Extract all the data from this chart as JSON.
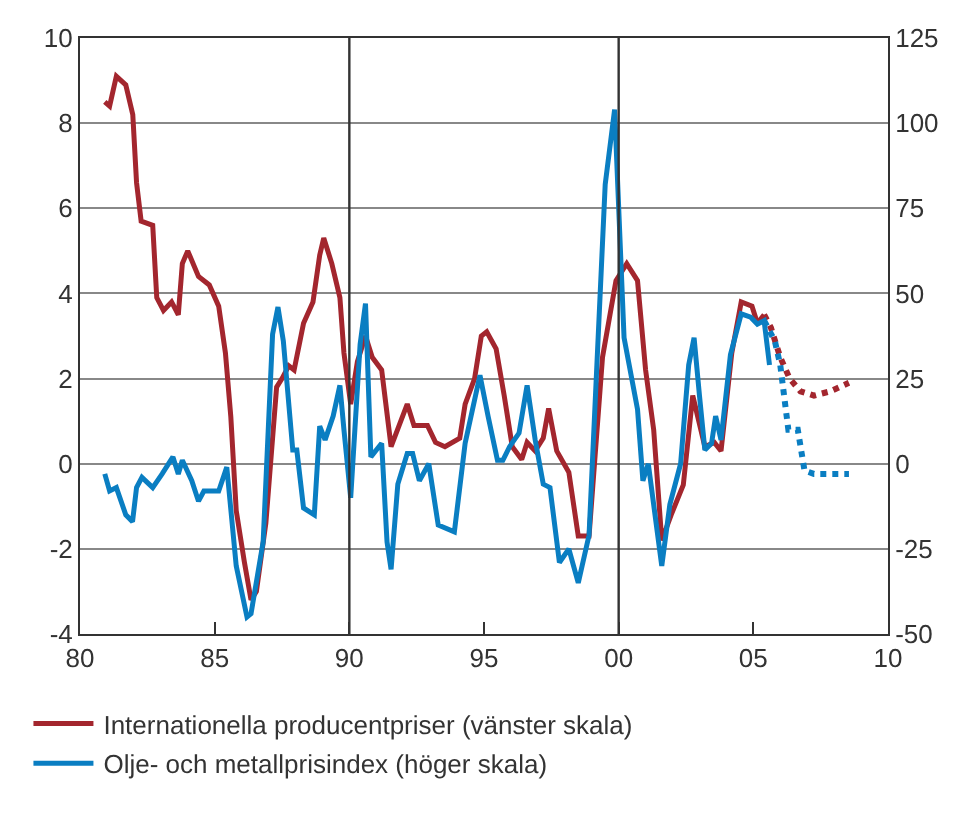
{
  "chart_data": {
    "type": "line",
    "xlim": [
      1980,
      2010
    ],
    "xticks": [
      {
        "value": 1980,
        "label": "80"
      },
      {
        "value": 1985,
        "label": "85"
      },
      {
        "value": 1990,
        "label": "90"
      },
      {
        "value": 1995,
        "label": "95"
      },
      {
        "value": 2000,
        "label": "00"
      },
      {
        "value": 2005,
        "label": "05"
      },
      {
        "value": 2010,
        "label": "10"
      }
    ],
    "ylim": [
      -4,
      10
    ],
    "yticks": [
      -4,
      -2,
      0,
      2,
      4,
      6,
      8,
      10
    ],
    "y2lim": [
      -50,
      125
    ],
    "y2ticks": [
      -50,
      -25,
      0,
      25,
      50,
      75,
      100,
      125
    ],
    "grid": "y",
    "legend": "bottom",
    "marker": "none",
    "ref_lines": [
      {
        "axis": "x",
        "value": 1990,
        "label": null
      },
      {
        "axis": "x",
        "value": 2000,
        "label": null
      }
    ],
    "series": [
      {
        "name": "Internationella producentpriser (vänster skala)",
        "color": "#a3262e",
        "line_style": "solid",
        "x": [
          1980.92,
          1981.1,
          1981.35,
          1981.7,
          1981.96,
          1982.1,
          1982.27,
          1982.7,
          1982.85,
          1983.1,
          1983.4,
          1983.65,
          1983.8,
          1984.0,
          1984.4,
          1984.8,
          1985.15,
          1985.4,
          1985.6,
          1985.8,
          1986.1,
          1986.35,
          1986.55,
          1986.9,
          1987.3,
          1987.5,
          1987.75,
          1987.95,
          1988.3,
          1988.65,
          1988.9,
          1989.05,
          1989.35,
          1989.65,
          1989.8,
          1990.05,
          1990.3,
          1990.6,
          1990.85,
          1991.2,
          1991.55,
          1992.15,
          1992.4,
          1992.9,
          1993.2,
          1993.55,
          1994.1,
          1994.3,
          1994.65,
          1994.9,
          1995.1,
          1995.45,
          1995.75,
          1996.05,
          1996.4,
          1996.6,
          1996.9,
          1997.2,
          1997.4,
          1997.7,
          1998.15,
          1998.5,
          1998.9,
          1999.4,
          1999.9,
          2000.3,
          2000.7,
          2001.0,
          2001.3,
          2001.6,
          2001.95,
          2002.4,
          2002.75,
          2003.2,
          2003.55,
          2003.8,
          2004.2,
          2004.55,
          2004.95,
          2005.15,
          2005.4
        ],
        "values": [
          8.5,
          8.4,
          9.1,
          8.9,
          8.2,
          6.6,
          5.7,
          5.6,
          3.9,
          3.6,
          3.8,
          3.5,
          4.7,
          5.0,
          4.4,
          4.2,
          3.7,
          2.6,
          1.1,
          -1.1,
          -2.3,
          -3.2,
          -3.0,
          -1.4,
          1.8,
          2.0,
          2.3,
          2.2,
          3.3,
          3.8,
          4.9,
          5.3,
          4.7,
          3.9,
          2.6,
          1.4,
          2.4,
          3.0,
          2.5,
          2.2,
          0.4,
          1.4,
          0.9,
          0.9,
          0.5,
          0.4,
          0.6,
          1.4,
          2.0,
          3.0,
          3.1,
          2.7,
          1.6,
          0.4,
          0.1,
          0.5,
          0.3,
          0.6,
          1.3,
          0.3,
          -0.2,
          -1.7,
          -1.7,
          2.5,
          4.3,
          4.7,
          4.3,
          2.2,
          0.8,
          -1.8,
          -1.2,
          -0.5,
          1.6,
          0.4,
          0.5,
          0.3,
          2.6,
          3.8,
          3.7,
          3.3,
          3.5
        ]
      },
      {
        "color": "#a3262e",
        "line_style": "dotted",
        "x": [
          2005.4,
          2005.65,
          2006.0,
          2006.35,
          2006.75,
          2007.25,
          2007.85,
          2008.55
        ],
        "values": [
          3.5,
          3.2,
          2.5,
          2.0,
          1.7,
          1.6,
          1.7,
          1.9
        ]
      },
      {
        "name": "Olje- och metallprisindex (höger skala)",
        "color": "#0a7ec2",
        "axis": "y2",
        "line_style": "solid",
        "x": [
          1980.92,
          1981.1,
          1981.35,
          1981.7,
          1981.95,
          1982.1,
          1982.3,
          1982.7,
          1983.05,
          1983.45,
          1983.65,
          1983.8,
          1984.15,
          1984.4,
          1984.6,
          1985.15,
          1985.45,
          1985.8,
          1986.2,
          1986.35,
          1986.8,
          1987.15,
          1987.35,
          1987.55,
          1987.9,
          1988.05,
          1988.3,
          1988.7,
          1988.9,
          1989.1,
          1989.4,
          1989.65,
          1989.8,
          1990.05,
          1990.4,
          1990.6,
          1990.8,
          1991.2,
          1991.4,
          1991.55,
          1991.8,
          1992.15,
          1992.35,
          1992.6,
          1992.95,
          1993.3,
          1993.9,
          1994.3,
          1994.85,
          1995.15,
          1995.5,
          1995.7,
          1995.95,
          1996.3,
          1996.6,
          1996.9,
          1997.2,
          1997.45,
          1997.8,
          1998.15,
          1998.5,
          1998.9,
          1999.5,
          1999.85,
          2000.2,
          2000.7,
          2000.9,
          2001.1,
          2001.35,
          2001.6,
          2001.9,
          2002.3,
          2002.6,
          2002.8,
          2003.0,
          2003.2,
          2003.45,
          2003.6,
          2003.8,
          2004.15,
          2004.55,
          2004.9,
          2005.15,
          2005.4,
          2005.6
        ],
        "values": [
          -3,
          -8,
          -7,
          -15,
          -17,
          -7,
          -4,
          -7,
          -3,
          2,
          -3,
          1,
          -5,
          -11,
          -8,
          -8,
          -1,
          -30,
          -45,
          -44,
          -23,
          38,
          46,
          36,
          4,
          4,
          -13,
          -15,
          11,
          7,
          14,
          23,
          10,
          -10,
          35,
          47,
          2,
          6,
          -23,
          -31,
          -6,
          3,
          3,
          -5,
          0,
          -18,
          -20,
          6,
          26,
          14,
          1,
          1,
          5,
          9,
          23,
          7,
          -6,
          -7,
          -29,
          -25,
          -35,
          -21,
          82,
          104,
          37,
          16,
          -5,
          0,
          -15,
          -30,
          -12,
          0,
          29,
          37,
          20,
          4,
          6,
          14,
          7,
          32,
          44,
          43,
          41,
          42,
          29
        ]
      },
      {
        "color": "#0a7ec2",
        "axis": "y2",
        "line_style": "dotted",
        "x": [
          2005.4,
          2005.8,
          2006.0,
          2006.3,
          2006.65,
          2006.9,
          2007.25,
          2007.95,
          2008.55
        ],
        "values": [
          42,
          36,
          29,
          10,
          10,
          -2,
          -3,
          -3,
          -3
        ]
      }
    ]
  }
}
